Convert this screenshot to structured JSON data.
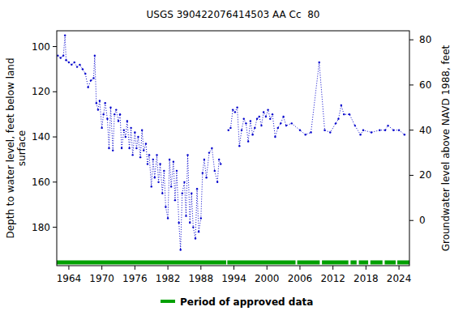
{
  "chart_data": {
    "type": "line",
    "title": "USGS 390422076414503 AA Cc  80",
    "y_label": [
      "Depth to water level, feet below land",
      "surface"
    ],
    "y2_label": "Groundwater level above NAVD 1988, feet",
    "xlim": [
      1961.8,
      2025.9
    ],
    "xticks": [
      1964,
      1970,
      1976,
      1982,
      1988,
      1994,
      2000,
      2006,
      2012,
      2018,
      2024
    ],
    "ylim": [
      93,
      197
    ],
    "yticks": [
      100,
      120,
      140,
      160,
      180
    ],
    "y2lim": [
      84,
      -20
    ],
    "y2ticks": [
      80,
      60,
      40,
      20,
      0
    ],
    "grid": false,
    "series": [
      {
        "name": "Depth to water level",
        "color": "#0000cc",
        "line_style": "dotted",
        "marker": "point",
        "x": [
          1962.0,
          1962.5,
          1963.0,
          1963.3,
          1963.5,
          1964,
          1964.5,
          1965,
          1965.5,
          1966,
          1966.5,
          1967,
          1967.5,
          1968,
          1968.5,
          1968.7,
          1969,
          1969.3,
          1969.6,
          1970,
          1970.3,
          1970.6,
          1971,
          1971.3,
          1971.6,
          1972,
          1972.3,
          1972.6,
          1973,
          1973.3,
          1973.6,
          1974,
          1974.3,
          1974.6,
          1975,
          1975.3,
          1975.6,
          1976,
          1976.3,
          1976.6,
          1977,
          1977.3,
          1977.6,
          1978,
          1978.3,
          1978.6,
          1979,
          1979.3,
          1979.6,
          1980,
          1980.3,
          1980.6,
          1981,
          1981.3,
          1981.6,
          1982,
          1982.3,
          1982.6,
          1983,
          1983.3,
          1983.6,
          1984,
          1984.3,
          1984.6,
          1985,
          1985.3,
          1985.6,
          1986,
          1986.3,
          1986.6,
          1987,
          1987.3,
          1987.6,
          1988,
          1988.3,
          1988.6,
          1989,
          1989.5,
          1990,
          1990.5,
          1991,
          1991.3,
          1991.6,
          null,
          1993.0,
          1993.4,
          1993.8,
          1994.2,
          1994.6,
          1995,
          1995.4,
          1995.8,
          1996.2,
          1996.6,
          1997,
          1997.4,
          1997.8,
          1998.2,
          1998.6,
          1999,
          1999.4,
          1999.8,
          2000.2,
          2000.6,
          2001,
          2001.5,
          2002,
          2002.5,
          2003,
          2003.5,
          2004.5,
          2006,
          2007,
          2008,
          2009.5,
          2010.5,
          2011.5,
          2012.5,
          2013,
          2013.5,
          2014,
          2015,
          2016,
          2017,
          2017.5,
          2019,
          2020.5,
          2021.5,
          2022,
          2023,
          2024,
          2025
        ],
        "values": [
          104,
          105,
          104,
          95,
          106,
          107,
          108,
          107,
          109,
          108,
          110,
          112,
          118,
          115,
          114,
          104,
          125,
          128,
          124,
          136,
          130,
          125,
          132,
          145,
          127,
          146,
          130,
          128,
          133,
          130,
          145,
          137,
          140,
          133,
          145,
          136,
          148,
          138,
          145,
          140,
          149,
          137,
          146,
          143,
          152,
          148,
          162,
          150,
          158,
          148,
          160,
          152,
          165,
          155,
          171,
          176,
          150,
          162,
          151,
          168,
          155,
          178,
          190,
          165,
          160,
          175,
          148,
          178,
          165,
          180,
          185,
          163,
          182,
          176,
          156,
          150,
          158,
          147,
          145,
          155,
          160,
          150,
          152,
          null,
          137,
          136,
          128,
          129,
          127,
          144,
          137,
          132,
          134,
          142,
          133,
          139,
          136,
          132,
          131,
          135,
          129,
          131,
          128,
          132,
          130,
          140,
          136,
          134,
          131,
          135,
          134,
          137,
          139,
          138,
          107,
          137,
          138,
          134,
          132,
          126,
          130,
          130,
          135,
          139,
          137,
          138,
          137,
          137,
          135,
          137,
          137,
          139
        ]
      }
    ],
    "approved_periods": {
      "name": "Period of approved data",
      "color": "#00a000",
      "periods": [
        [
          1961.8,
          1992.6
        ],
        [
          1992.8,
          2005.2
        ],
        [
          2005.5,
          2009.6
        ],
        [
          2010.0,
          2014.8
        ],
        [
          2015.2,
          2016.3
        ],
        [
          2016.7,
          2018.4
        ],
        [
          2018.8,
          2021.0
        ],
        [
          2021.4,
          2023.4
        ],
        [
          2023.7,
          2025.9
        ]
      ]
    }
  }
}
